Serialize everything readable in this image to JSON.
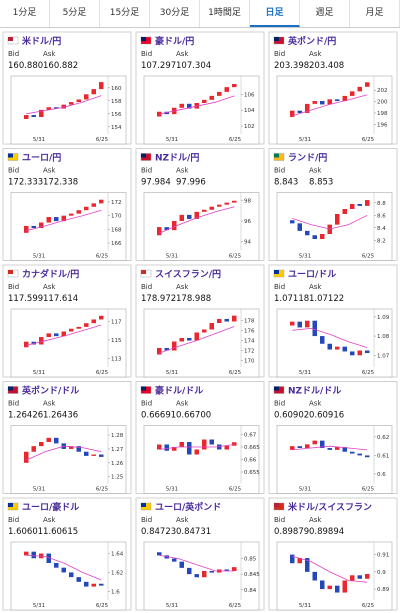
{
  "tabs": [
    "1分足",
    "5分足",
    "15分足",
    "30分足",
    "1時間足",
    "日足",
    "週足",
    "月足"
  ],
  "active_tab": 5,
  "bid_label": "Bid",
  "ask_label": "Ask",
  "dates": [
    "5/31",
    "6/25"
  ],
  "panels": [
    {
      "name": "米ドル/円",
      "bid": "160.880",
      "ask": "160.882",
      "ylim": [
        153.5,
        161.2
      ],
      "yticks": [
        154,
        156,
        158,
        160
      ],
      "closes": [
        155.2,
        155.8,
        155.5,
        156.6,
        157.0,
        156.8,
        157.4,
        157.8,
        158.2,
        159.0,
        159.8,
        160.88
      ],
      "ma": [
        156,
        156.5,
        157,
        157.8,
        158.8
      ]
    },
    {
      "name": "豪ドル/円",
      "bid": "107.297",
      "ask": "107.304",
      "ylim": [
        101.5,
        107.8
      ],
      "yticks": [
        102,
        104,
        106
      ],
      "closes": [
        103.2,
        103.8,
        103.5,
        104.3,
        104.8,
        104.2,
        104.9,
        105.3,
        105.8,
        106.3,
        106.9,
        107.297
      ],
      "ma": [
        103.5,
        104,
        104.5,
        105,
        105.8
      ]
    },
    {
      "name": "英ポンド/円",
      "bid": "203.398",
      "ask": "203.408",
      "ylim": [
        195,
        203.8
      ],
      "yticks": [
        196,
        198,
        200,
        202
      ],
      "closes": [
        197.3,
        198.4,
        198.0,
        199.6,
        200.1,
        199.5,
        200.4,
        200.1,
        201.0,
        201.8,
        202.6,
        203.398
      ],
      "ma": [
        197.5,
        198.5,
        199.5,
        200.3,
        201.2
      ]
    },
    {
      "name": "ユーロ/円",
      "bid": "172.333",
      "ask": "172.338",
      "ylim": [
        165.5,
        172.8
      ],
      "yticks": [
        166,
        168,
        170,
        172
      ],
      "closes": [
        167.5,
        168.5,
        168.2,
        169.0,
        169.8,
        169.2,
        170.0,
        170.3,
        170.8,
        171.3,
        171.8,
        172.333
      ],
      "ma": [
        167.8,
        168.5,
        169.3,
        170,
        170.8
      ]
    },
    {
      "name": "NZドル/円",
      "bid": "97.984",
      "ask": "97.996",
      "ylim": [
        93.5,
        98.4
      ],
      "yticks": [
        94,
        96,
        98
      ],
      "closes": [
        94.6,
        95.4,
        95.1,
        96.0,
        96.6,
        96.2,
        96.9,
        97.1,
        97.4,
        97.6,
        97.8,
        97.984
      ],
      "ma": [
        94.8,
        95.6,
        96.3,
        96.9,
        97.4
      ]
    },
    {
      "name": "ランド/円",
      "bid": "8.843",
      "ask": "8.853",
      "ylim": [
        8.1,
        8.9
      ],
      "yticks": [
        8.2,
        8.4,
        8.6,
        8.8
      ],
      "closes": [
        8.52,
        8.47,
        8.35,
        8.28,
        8.22,
        8.3,
        8.45,
        8.62,
        8.7,
        8.78,
        8.75,
        8.843
      ],
      "ma": [
        8.55,
        8.45,
        8.38,
        8.45,
        8.6
      ]
    },
    {
      "name": "カナダドル/円",
      "bid": "117.599",
      "ask": "117.614",
      "ylim": [
        112.5,
        117.9
      ],
      "yticks": [
        113,
        115,
        117
      ],
      "closes": [
        114.2,
        114.8,
        114.5,
        115.3,
        115.7,
        115.4,
        115.9,
        116.2,
        116.4,
        116.8,
        117.2,
        117.599
      ],
      "ma": [
        114.4,
        114.9,
        115.4,
        116,
        116.6
      ]
    },
    {
      "name": "スイスフラン/円",
      "bid": "178.972",
      "ask": "178.988",
      "ylim": [
        169.5,
        179.5
      ],
      "yticks": [
        170,
        172,
        174,
        176,
        178
      ],
      "closes": [
        171.2,
        172.5,
        172.0,
        173.8,
        174.5,
        174.0,
        175.6,
        176.2,
        177.5,
        178.3,
        177.8,
        178.972
      ],
      "ma": [
        171.5,
        172.8,
        174,
        175.4,
        176.8
      ]
    },
    {
      "name": "ユーロ/ドル",
      "bid": "1.07118",
      "ask": "1.07122",
      "ylim": [
        1.066,
        1.092
      ],
      "yticks": [
        1.07,
        1.08,
        1.09
      ],
      "closes": [
        1.0855,
        1.0875,
        1.0845,
        1.088,
        1.08,
        1.076,
        1.073,
        1.0745,
        1.072,
        1.07,
        1.0725,
        1.07118
      ],
      "ma": [
        1.083,
        1.084,
        1.081,
        1.077,
        1.074
      ]
    },
    {
      "name": "英ポンド/ドル",
      "bid": "1.26426",
      "ask": "1.26436",
      "ylim": [
        1.248,
        1.284
      ],
      "yticks": [
        1.25,
        1.26,
        1.27,
        1.28
      ],
      "closes": [
        1.26,
        1.268,
        1.272,
        1.275,
        1.278,
        1.274,
        1.27,
        1.272,
        1.268,
        1.265,
        1.266,
        1.26426
      ],
      "ma": [
        1.262,
        1.268,
        1.272,
        1.271,
        1.268
      ]
    },
    {
      "name": "豪ドル/ドル",
      "bid": "0.66691",
      "ask": "0.66700",
      "ylim": [
        0.652,
        0.672
      ],
      "yticks": [
        0.655,
        0.66,
        0.665,
        0.67
      ],
      "closes": [
        0.664,
        0.666,
        0.6635,
        0.665,
        0.667,
        0.662,
        0.664,
        0.668,
        0.666,
        0.664,
        0.6655,
        0.66691
      ],
      "ma": [
        0.664,
        0.665,
        0.665,
        0.665,
        0.666
      ]
    },
    {
      "name": "NZドル/ドル",
      "bid": "0.60902",
      "ask": "0.60916",
      "ylim": [
        0.597,
        0.624
      ],
      "yticks": [
        0.6,
        0.61,
        0.62
      ],
      "closes": [
        0.613,
        0.615,
        0.614,
        0.616,
        0.618,
        0.614,
        0.613,
        0.6145,
        0.612,
        0.611,
        0.61,
        0.60902
      ],
      "ma": [
        0.613,
        0.614,
        0.615,
        0.614,
        0.613
      ]
    },
    {
      "name": "ユーロ/豪ドル",
      "bid": "1.60601",
      "ask": "1.60615",
      "ylim": [
        1.595,
        1.648
      ],
      "yticks": [
        1.6,
        1.62,
        1.64
      ],
      "closes": [
        1.638,
        1.642,
        1.635,
        1.64,
        1.63,
        1.625,
        1.62,
        1.615,
        1.61,
        1.605,
        1.608,
        1.60601
      ],
      "ma": [
        1.638,
        1.637,
        1.63,
        1.62,
        1.612
      ]
    },
    {
      "name": "ユーロ/英ポンド",
      "bid": "0.84723",
      "ask": "0.84731",
      "ylim": [
        0.838,
        0.854
      ],
      "yticks": [
        0.84,
        0.845,
        0.85
      ],
      "closes": [
        0.852,
        0.851,
        0.85,
        0.849,
        0.847,
        0.845,
        0.844,
        0.846,
        0.8455,
        0.8465,
        0.846,
        0.84723
      ],
      "ma": [
        0.851,
        0.85,
        0.848,
        0.846,
        0.846
      ]
    },
    {
      "name": "米ドル/スイスフラン",
      "bid": "0.89879",
      "ask": "0.89894",
      "ylim": [
        0.886,
        0.915
      ],
      "yticks": [
        0.89,
        0.9,
        0.91
      ],
      "closes": [
        0.91,
        0.905,
        0.908,
        0.9,
        0.895,
        0.89,
        0.892,
        0.888,
        0.895,
        0.898,
        0.896,
        0.89879
      ],
      "ma": [
        0.909,
        0.906,
        0.9,
        0.895,
        0.894
      ]
    }
  ]
}
